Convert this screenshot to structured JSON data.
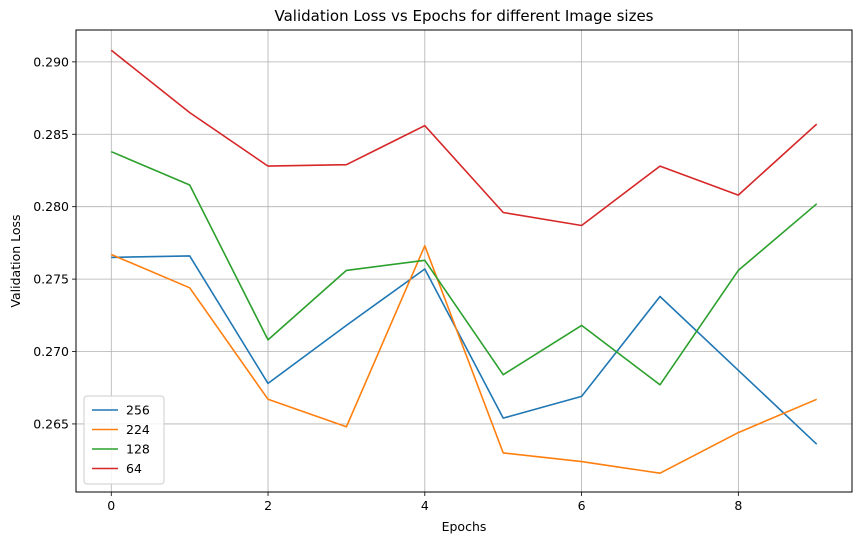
{
  "chart_data": {
    "type": "line",
    "title": "Validation Loss vs Epochs for different Image sizes",
    "xlabel": "Epochs",
    "ylabel": "Validation Loss",
    "x": [
      0,
      1,
      2,
      3,
      4,
      5,
      6,
      7,
      8,
      9
    ],
    "xlim": [
      -0.45,
      9.45
    ],
    "ylim": [
      0.2603,
      0.2922
    ],
    "xticks": [
      0,
      2,
      4,
      6,
      8
    ],
    "yticks": [
      0.265,
      0.27,
      0.275,
      0.28,
      0.285,
      0.29
    ],
    "xtick_labels": [
      "0",
      "2",
      "4",
      "6",
      "8"
    ],
    "ytick_labels": [
      "0.265",
      "0.270",
      "0.275",
      "0.280",
      "0.285",
      "0.290"
    ],
    "grid": true,
    "legend_position": "lower-left",
    "series": [
      {
        "name": "256",
        "color": "#1f77b4",
        "values": [
          0.2765,
          0.2766,
          0.2678,
          0.2718,
          0.2757,
          0.2654,
          0.2669,
          0.2738,
          0.2687,
          0.2636
        ]
      },
      {
        "name": "224",
        "color": "#ff7f0e",
        "values": [
          0.2767,
          0.2744,
          0.2667,
          0.2648,
          0.2773,
          0.263,
          0.2624,
          0.2616,
          0.2644,
          0.2667
        ]
      },
      {
        "name": "128",
        "color": "#2ca02c",
        "values": [
          0.2838,
          0.2815,
          0.2708,
          0.2756,
          0.2763,
          0.2684,
          0.2718,
          0.2677,
          0.2756,
          0.2802
        ]
      },
      {
        "name": "64",
        "color": "#d62728",
        "values": [
          0.2908,
          0.2865,
          0.2828,
          0.2829,
          0.2856,
          0.2796,
          0.2787,
          0.2828,
          0.2808,
          0.2857
        ]
      }
    ]
  }
}
